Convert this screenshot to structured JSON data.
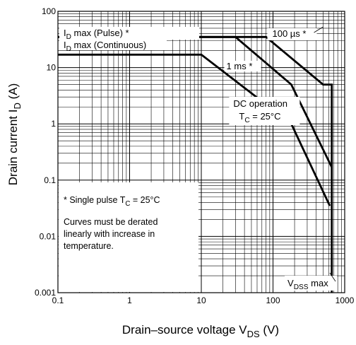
{
  "chart_data": {
    "type": "line",
    "title": "",
    "x_axis": {
      "label": "Drain–source voltage",
      "symbol": "V",
      "symbol_sub": "DS",
      "unit": "(V)",
      "scale": "log",
      "range": [
        0.1,
        1000
      ],
      "ticks": [
        0.1,
        1,
        10,
        100,
        1000
      ],
      "tick_labels": [
        "0.1",
        "1",
        "10",
        "100",
        "1000"
      ]
    },
    "y_axis": {
      "label": "Drain current",
      "symbol": "I",
      "symbol_sub": "D",
      "unit": "(A)",
      "scale": "log",
      "range": [
        0.001,
        100
      ],
      "ticks": [
        0.001,
        0.01,
        0.1,
        1,
        10,
        100
      ],
      "tick_labels": [
        "0.001",
        "0.01",
        "0.1",
        "1",
        "10",
        "100"
      ]
    },
    "grid": true,
    "series": [
      {
        "name": "100 µs *",
        "points": [
          [
            0.1,
            35
          ],
          [
            80,
            35
          ],
          [
            500,
            5
          ],
          [
            660,
            5
          ],
          [
            660,
            0.001
          ]
        ]
      },
      {
        "name": "1 ms *",
        "points": [
          [
            0.1,
            35
          ],
          [
            30,
            35
          ],
          [
            180,
            5
          ],
          [
            660,
            0.17
          ]
        ]
      },
      {
        "name": "DC operation",
        "points": [
          [
            0.1,
            17
          ],
          [
            10,
            17
          ],
          [
            180,
            1
          ],
          [
            620,
            0.035
          ]
        ]
      }
    ],
    "annotations": {
      "id_pulse": {
        "prefix": "I",
        "sub": "D",
        "suffix": " max (Pulse) *"
      },
      "id_cont": {
        "prefix": "I",
        "sub": "D",
        "suffix": " max (Continuous)"
      },
      "us100": "100 µs *",
      "ms1": "1 ms *",
      "dc_line1": "DC operation",
      "dc_line2": {
        "prefix": "T",
        "sub": "C",
        "suffix": " = 25°C"
      },
      "vdss": {
        "prefix": "V",
        "sub": "DSS",
        "suffix": " max"
      }
    },
    "note": {
      "line1": {
        "prefix": "* Single pulse   T",
        "sub": "C",
        "suffix": " = 25°C"
      },
      "lines": [
        "Curves must be derated",
        "linearly with increase in",
        "temperature."
      ]
    }
  }
}
